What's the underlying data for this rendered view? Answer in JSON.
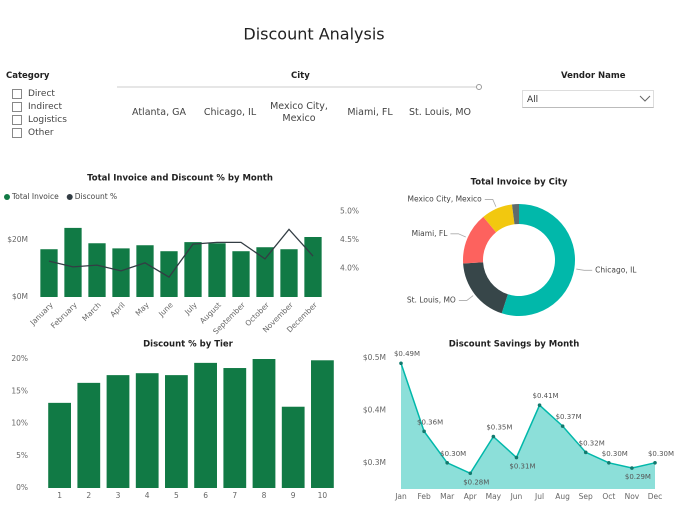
{
  "title": "Discount Analysis",
  "category_slicer": {
    "title": "Category",
    "options": [
      "Direct",
      "Indirect",
      "Logistics",
      "Other"
    ]
  },
  "city_slicer": {
    "title": "City",
    "options": [
      "Atlanta, GA",
      "Chicago, IL",
      "Mexico City, Mexico",
      "Miami, FL",
      "St. Louis, MO"
    ]
  },
  "vendor_slicer": {
    "title": "Vendor Name",
    "selected": "All"
  },
  "chart_data": [
    {
      "type": "combo",
      "title": "Total Invoice and Discount % by Month",
      "categories": [
        "January",
        "February",
        "March",
        "April",
        "May",
        "June",
        "July",
        "August",
        "September",
        "October",
        "November",
        "December"
      ],
      "series": [
        {
          "name": "Total Invoice",
          "type": "bar",
          "color": "#117a45",
          "values": [
            16.8,
            24.3,
            18.9,
            17.1,
            18.2,
            16.1,
            19.3,
            18.9,
            16.1,
            17.5,
            16.8,
            21.1
          ]
        },
        {
          "name": "Discount %",
          "type": "line",
          "axis": "y2",
          "color": "#333d44",
          "values": [
            4.13,
            4.03,
            4.06,
            3.96,
            4.1,
            3.85,
            4.43,
            4.46,
            4.46,
            4.17,
            4.69,
            4.22
          ]
        }
      ],
      "ylim": [
        0,
        32
      ],
      "yticks": [
        {
          "value": 0,
          "label": "$0M"
        },
        {
          "value": 20,
          "label": "$20M"
        }
      ],
      "y2lim": [
        3.5,
        5.1
      ],
      "y2ticks": [
        {
          "value": 4,
          "label": "4.0%"
        },
        {
          "value": 4.5,
          "label": "4.5%"
        },
        {
          "value": 5,
          "label": "5.0%"
        }
      ],
      "legend": "top-left"
    },
    {
      "type": "donut",
      "title": "Total Invoice by City",
      "categories": [
        "Chicago, IL",
        "St. Louis, MO",
        "Miami, FL",
        "Mexico City, Mexico",
        null
      ],
      "values": [
        55,
        19,
        15,
        9,
        2
      ],
      "colors": [
        "#01b8aa",
        "#374649",
        "#fd625e",
        "#f2c80f",
        "#5f6b6d"
      ]
    },
    {
      "type": "bar",
      "title": "Discount % by Tier",
      "categories": [
        "1",
        "2",
        "3",
        "4",
        "5",
        "6",
        "7",
        "8",
        "9",
        "10"
      ],
      "values": [
        13.2,
        16.3,
        17.5,
        17.8,
        17.5,
        19.4,
        18.6,
        20,
        12.6,
        19.8
      ],
      "color": "#117a45",
      "ylim": [
        0,
        20
      ],
      "yticks": [
        {
          "value": 0,
          "label": "0%"
        },
        {
          "value": 5,
          "label": "5%"
        },
        {
          "value": 10,
          "label": "10%"
        },
        {
          "value": 15,
          "label": "15%"
        },
        {
          "value": 20,
          "label": "20%"
        }
      ]
    },
    {
      "type": "area",
      "title": "Discount Savings by Month",
      "categories": [
        "Jan",
        "Feb",
        "Mar",
        "Apr",
        "May",
        "Jun",
        "Jul",
        "Aug",
        "Sep",
        "Oct",
        "Nov",
        "Dec"
      ],
      "values": [
        0.49,
        0.36,
        0.3,
        0.28,
        0.35,
        0.31,
        0.41,
        0.37,
        0.32,
        0.3,
        0.29,
        0.3
      ],
      "value_labels": [
        "$0.49M",
        "$0.36M",
        "$0.30M",
        "$0.28M",
        "$0.35M",
        "$0.31M",
        "$0.41M",
        "$0.37M",
        "$0.32M",
        "$0.30M",
        "$0.29M",
        "$0.30M"
      ],
      "color": "#01b8aa",
      "ylim": [
        0.25,
        0.5
      ],
      "yticks": [
        {
          "value": 0.3,
          "label": "$0.3M"
        },
        {
          "value": 0.4,
          "label": "$0.4M"
        },
        {
          "value": 0.5,
          "label": "$0.5M"
        }
      ]
    }
  ]
}
